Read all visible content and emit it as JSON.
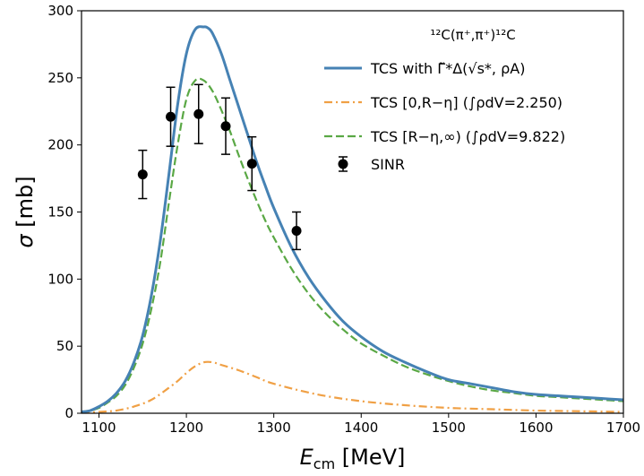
{
  "chart_data": {
    "type": "line",
    "xlabel_main": "E",
    "xlabel_sub": "cm",
    "xlabel_unit": " [MeV]",
    "ylabel_main": "σ",
    "ylabel_unit": " [mb]",
    "xlim": [
      1080,
      1700
    ],
    "ylim": [
      0,
      300
    ],
    "xticks": [
      1100,
      1200,
      1300,
      1400,
      1500,
      1600,
      1700
    ],
    "yticks": [
      0,
      50,
      100,
      150,
      200,
      250,
      300
    ],
    "grid": false,
    "legend_position": "top-right",
    "legend_title": "¹²C(π⁺,π⁺)¹²C",
    "series": [
      {
        "name": "TCS with Γ̃*Δ(√s*, ρA)",
        "style": "solid",
        "color": "#4682b4",
        "x": [
          1080,
          1090,
          1100,
          1110,
          1120,
          1130,
          1140,
          1150,
          1160,
          1170,
          1180,
          1190,
          1200,
          1210,
          1220,
          1225,
          1230,
          1240,
          1250,
          1260,
          1270,
          1280,
          1290,
          1300,
          1320,
          1340,
          1360,
          1380,
          1400,
          1425,
          1450,
          1475,
          1500,
          1525,
          1550,
          1575,
          1600,
          1625,
          1650,
          1675,
          1700
        ],
        "y": [
          1,
          2,
          5,
          9,
          15,
          24,
          38,
          58,
          88,
          128,
          178,
          230,
          268,
          286,
          288,
          287,
          283,
          268,
          248,
          228,
          208,
          188,
          170,
          153,
          124,
          101,
          83,
          68,
          57,
          46,
          38,
          31,
          25,
          22,
          19,
          16,
          14,
          13,
          12,
          11,
          10
        ]
      },
      {
        "name": "TCS [0,R−η] (∫ρdV=2.250)",
        "style": "dashdot",
        "color": "#f0a045",
        "x": [
          1080,
          1100,
          1120,
          1140,
          1160,
          1180,
          1190,
          1200,
          1210,
          1220,
          1230,
          1240,
          1260,
          1280,
          1300,
          1350,
          1400,
          1450,
          1500,
          1550,
          1600,
          1650,
          1700
        ],
        "y": [
          0,
          1,
          2,
          5,
          10,
          19,
          24,
          30,
          35,
          38,
          38,
          36,
          32,
          27,
          22,
          14,
          9,
          6,
          4,
          3,
          2,
          1.5,
          1
        ]
      },
      {
        "name": "TCS [R−η,∞) (∫ρdV=9.822)",
        "style": "dashed",
        "color": "#5aa845",
        "x": [
          1080,
          1090,
          1100,
          1110,
          1120,
          1130,
          1140,
          1150,
          1160,
          1170,
          1180,
          1190,
          1200,
          1210,
          1220,
          1230,
          1240,
          1250,
          1260,
          1270,
          1280,
          1290,
          1300,
          1320,
          1340,
          1360,
          1380,
          1400,
          1425,
          1450,
          1475,
          1500,
          1525,
          1550,
          1575,
          1600,
          1625,
          1650,
          1675,
          1700
        ],
        "y": [
          1,
          2,
          4,
          8,
          13,
          21,
          34,
          52,
          78,
          112,
          157,
          200,
          234,
          248,
          248,
          240,
          226,
          210,
          192,
          175,
          159,
          144,
          131,
          108,
          89,
          74,
          62,
          52,
          43,
          35,
          29,
          24,
          20,
          17,
          15,
          13,
          12,
          11,
          10,
          9
        ]
      }
    ],
    "scatter": {
      "name": "SINR",
      "color": "#000000",
      "points": [
        {
          "x": 1150,
          "y": 178,
          "err": 18
        },
        {
          "x": 1182,
          "y": 221,
          "err": 22
        },
        {
          "x": 1214,
          "y": 223,
          "err": 22
        },
        {
          "x": 1245,
          "y": 214,
          "err": 21
        },
        {
          "x": 1275,
          "y": 186,
          "err": 20
        },
        {
          "x": 1326,
          "y": 136,
          "err": 14
        }
      ]
    }
  }
}
